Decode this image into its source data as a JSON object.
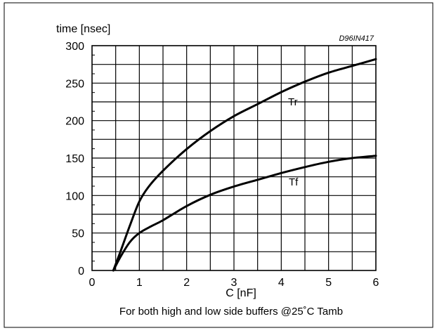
{
  "chart_data": {
    "type": "line",
    "code": "D96IN417",
    "ylabel": "time [nsec]",
    "xlabel": "C [nF]",
    "caption": "For both high and low side buffers @25˚C Tamb",
    "xlim": [
      0,
      6
    ],
    "ylim": [
      0,
      300
    ],
    "x_ticks": [
      0,
      1,
      2,
      3,
      4,
      5,
      6
    ],
    "y_ticks": [
      0,
      50,
      100,
      150,
      200,
      250,
      300
    ],
    "grid": true,
    "series": [
      {
        "name": "Tr",
        "x": [
          0.45,
          0.6,
          0.8,
          1.0,
          1.2,
          1.5,
          2.0,
          2.5,
          3.0,
          3.5,
          4.0,
          4.5,
          5.0,
          5.5,
          6.0
        ],
        "y": [
          0,
          25,
          60,
          92,
          112,
          133,
          162,
          186,
          206,
          222,
          238,
          252,
          264,
          273,
          282
        ]
      },
      {
        "name": "Tf",
        "x": [
          0.45,
          0.6,
          0.8,
          1.0,
          1.25,
          1.5,
          2.0,
          2.5,
          3.0,
          3.5,
          4.0,
          4.5,
          5.0,
          5.5,
          6.0
        ],
        "y": [
          0,
          18,
          38,
          50,
          59,
          67,
          86,
          101,
          112,
          121,
          130,
          138,
          145,
          150,
          153
        ]
      }
    ]
  }
}
